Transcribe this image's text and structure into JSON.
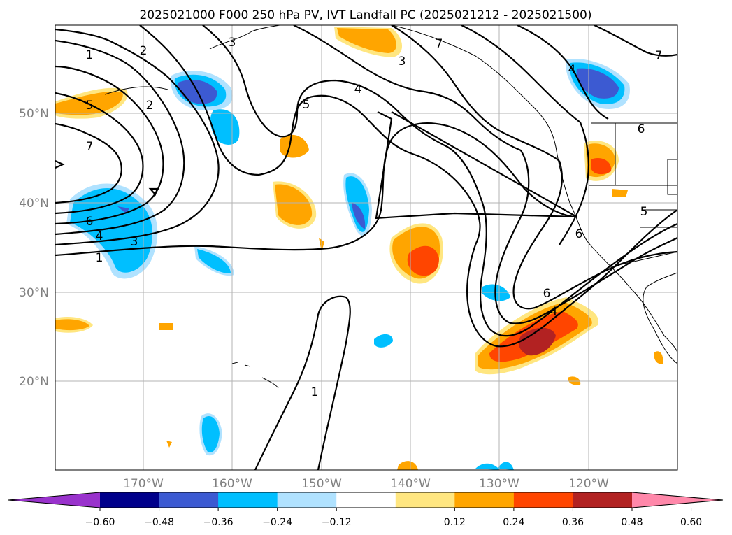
{
  "title": "2025021000 F000 250 hPa PV, IVT Landfall PC (2025021212 - 2025021500)",
  "lat_labels": [
    "50°N",
    "40°N",
    "30°N",
    "20°N"
  ],
  "lon_labels": [
    "170°W",
    "160°W",
    "150°W",
    "140°W",
    "130°W",
    "120°W"
  ],
  "contour_labels": [
    "1",
    "2",
    "3",
    "7",
    "4",
    "5",
    "3",
    "4",
    "5",
    "2",
    "7",
    "7",
    "6",
    "4",
    "3",
    "1",
    "6",
    "4",
    "5",
    "6",
    "6",
    "1"
  ],
  "colorbar": {
    "ticks": [
      "−0.60",
      "−0.48",
      "−0.36",
      "−0.24",
      "−0.12",
      "0.12",
      "0.24",
      "0.36",
      "0.48",
      "0.60"
    ],
    "colors": [
      "#9932cc",
      "#00008b",
      "#3c5ad2",
      "#00bfff",
      "#b0e2ff",
      "#ffffff",
      "#ffe680",
      "#ffa500",
      "#ff4500",
      "#b22222",
      "#ff88aa"
    ]
  }
}
